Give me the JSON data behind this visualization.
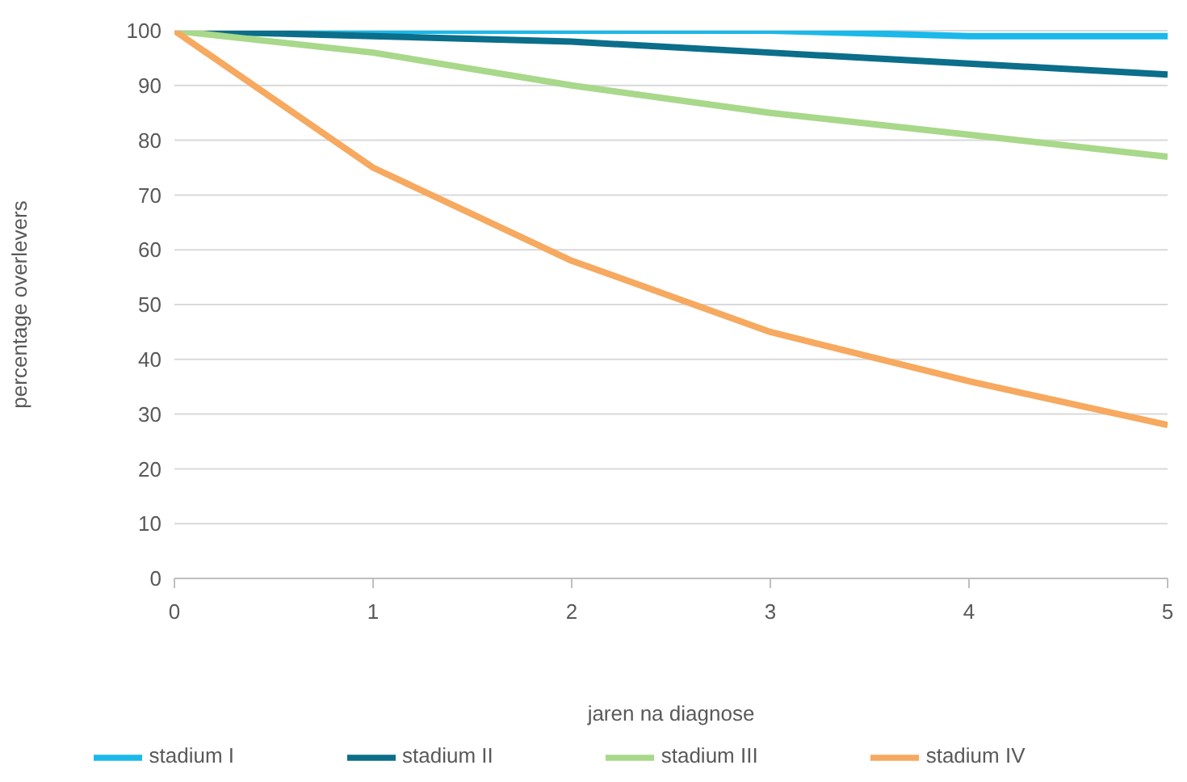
{
  "chart_data": {
    "type": "line",
    "xlabel": "jaren na diagnose",
    "ylabel": "percentage overlevers",
    "x": [
      0,
      1,
      2,
      3,
      4,
      5
    ],
    "series": [
      {
        "name": "stadium I",
        "color": "#1ab9ea",
        "values": [
          100,
          100,
          100,
          100,
          99,
          99
        ]
      },
      {
        "name": "stadium II",
        "color": "#0b6e8a",
        "values": [
          100,
          99,
          98,
          96,
          94,
          92
        ]
      },
      {
        "name": "stadium III",
        "color": "#a8d88a",
        "values": [
          100,
          96,
          90,
          85,
          81,
          77
        ]
      },
      {
        "name": "stadium IV",
        "color": "#f6a95f",
        "values": [
          100,
          75,
          58,
          45,
          36,
          28
        ]
      }
    ],
    "xlim": [
      0,
      5
    ],
    "xticks": [
      0,
      1,
      2,
      3,
      4,
      5
    ],
    "ylim": [
      0,
      100
    ],
    "yticks": [
      0,
      10,
      20,
      30,
      40,
      50,
      60,
      70,
      80,
      90,
      100
    ],
    "grid": "y",
    "legend": "bottom",
    "marker": "none",
    "line_style": "solid"
  }
}
